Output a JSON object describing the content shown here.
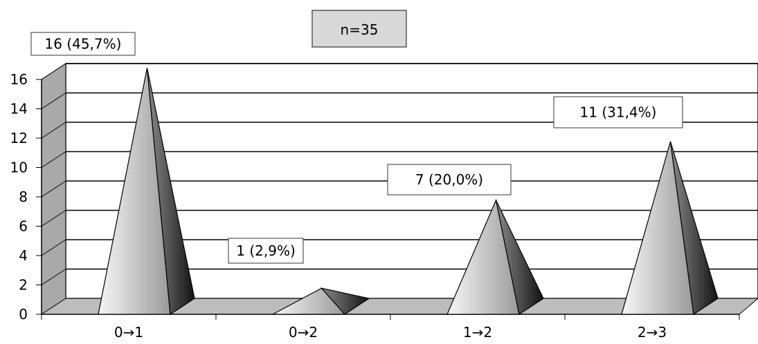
{
  "chart_data": {
    "type": "bar",
    "style": "3d-pyramid",
    "title": "n=35",
    "categories": [
      "0→1",
      "0→2",
      "1→2",
      "2→3"
    ],
    "values": [
      16,
      1,
      7,
      11
    ],
    "data_labels": [
      "16 (45,7%)",
      "1 (2,9%)",
      "7 (20,0%)",
      "11 (31,4%)"
    ],
    "ylim": [
      0,
      16
    ],
    "yticks": [
      0,
      2,
      4,
      6,
      8,
      10,
      12,
      14,
      16
    ],
    "grid": true,
    "legend": "none",
    "colors": {
      "pyramid_light": "#e2e2e2",
      "pyramid_dark": "#1c1c1c",
      "floor": "#bdbdbd",
      "wall": "#a9a9a9",
      "title_box": "#d9d9d9"
    }
  }
}
